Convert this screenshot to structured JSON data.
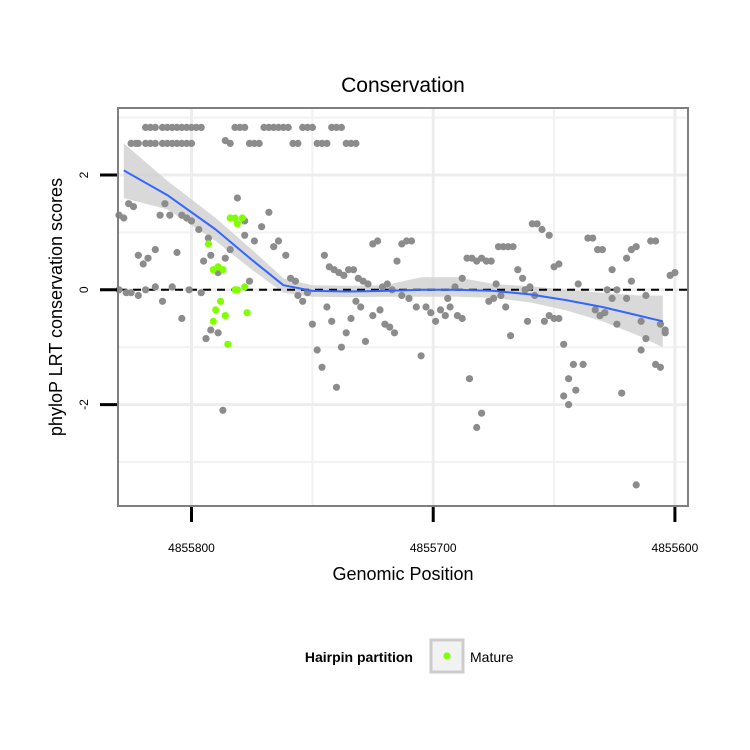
{
  "chart_data": {
    "type": "scatter",
    "title": "Conservation",
    "xlabel": "Genomic Position",
    "ylabel": "phyloP LRT conservation scores",
    "x_reversed": true,
    "xlim": [
      4855830,
      4855595
    ],
    "ylim": [
      -3.75,
      3.15
    ],
    "x_ticks": [
      4855800,
      4855700,
      4855600
    ],
    "x_tick_labels": [
      "4855800",
      "4855700",
      "4855600"
    ],
    "y_ticks": [
      2,
      0,
      -2
    ],
    "y_tick_labels": [
      "2",
      "0",
      "-2"
    ],
    "x_minor_grid": [
      4855750,
      4855650
    ],
    "y_minor_grid": [
      3,
      1,
      -1,
      -3
    ],
    "reference_line": {
      "y": 0,
      "style": "dashed"
    },
    "legend": {
      "title": "Hairpin partition",
      "entries": [
        "Mature"
      ],
      "position": "bottom"
    },
    "colors": {
      "default_points": "#8c8c8c",
      "mature_points": "#7fff00",
      "smooth_line": "#3366ff",
      "ribbon": "#cccccc",
      "panel_border": "#7f7f7f"
    },
    "series": [
      {
        "name": "other",
        "points": [
          [
            4855825,
            2.55
          ],
          [
            4855823,
            2.55
          ],
          [
            4855822,
            2.55
          ],
          [
            4855819,
            2.55
          ],
          [
            4855817,
            2.55
          ],
          [
            4855815,
            2.55
          ],
          [
            4855812,
            2.55
          ],
          [
            4855810,
            2.55
          ],
          [
            4855808,
            2.55
          ],
          [
            4855806,
            2.55
          ],
          [
            4855804,
            2.55
          ],
          [
            4855802,
            2.55
          ],
          [
            4855800,
            2.55
          ],
          [
            4855819,
            2.83
          ],
          [
            4855817,
            2.83
          ],
          [
            4855815,
            2.83
          ],
          [
            4855812,
            2.83
          ],
          [
            4855810,
            2.83
          ],
          [
            4855808,
            2.83
          ],
          [
            4855806,
            2.83
          ],
          [
            4855804,
            2.83
          ],
          [
            4855802,
            2.83
          ],
          [
            4855800,
            2.83
          ],
          [
            4855798,
            2.83
          ],
          [
            4855796,
            2.83
          ],
          [
            4855786,
            2.6
          ],
          [
            4855784,
            2.55
          ],
          [
            4855782,
            2.83
          ],
          [
            4855780,
            2.83
          ],
          [
            4855778,
            2.83
          ],
          [
            4855776,
            2.55
          ],
          [
            4855774,
            2.55
          ],
          [
            4855772,
            2.55
          ],
          [
            4855770,
            2.83
          ],
          [
            4855768,
            2.83
          ],
          [
            4855766,
            2.83
          ],
          [
            4855764,
            2.83
          ],
          [
            4855762,
            2.83
          ],
          [
            4855760,
            2.83
          ],
          [
            4855758,
            2.55
          ],
          [
            4855756,
            2.55
          ],
          [
            4855754,
            2.83
          ],
          [
            4855752,
            2.83
          ],
          [
            4855750,
            2.83
          ],
          [
            4855748,
            2.55
          ],
          [
            4855746,
            2.55
          ],
          [
            4855744,
            2.55
          ],
          [
            4855742,
            2.83
          ],
          [
            4855740,
            2.83
          ],
          [
            4855738,
            2.83
          ],
          [
            4855736,
            2.55
          ],
          [
            4855734,
            2.55
          ],
          [
            4855732,
            2.55
          ],
          [
            4855830,
            1.3
          ],
          [
            4855828,
            1.25
          ],
          [
            4855826,
            1.5
          ],
          [
            4855824,
            1.45
          ],
          [
            4855822,
            0.6
          ],
          [
            4855820,
            0.45
          ],
          [
            4855818,
            0.55
          ],
          [
            4855815,
            0.7
          ],
          [
            4855813,
            1.3
          ],
          [
            4855811,
            1.5
          ],
          [
            4855809,
            1.3
          ],
          [
            4855806,
            0.65
          ],
          [
            4855804,
            1.3
          ],
          [
            4855802,
            1.25
          ],
          [
            4855800,
            1.2
          ],
          [
            4855797,
            1.05
          ],
          [
            4855795,
            0.5
          ],
          [
            4855793,
            0.9
          ],
          [
            4855792,
            0.6
          ],
          [
            4855789,
            0.3
          ],
          [
            4855786,
            0.55
          ],
          [
            4855784,
            0.7
          ],
          [
            4855781,
            1.6
          ],
          [
            4855778,
            1.2
          ],
          [
            4855776,
            0.15
          ],
          [
            4855830,
            0.0
          ],
          [
            4855827,
            -0.05
          ],
          [
            4855825,
            -0.05
          ],
          [
            4855822,
            -0.1
          ],
          [
            4855819,
            0.0
          ],
          [
            4855815,
            0.05
          ],
          [
            4855812,
            -0.2
          ],
          [
            4855808,
            0.05
          ],
          [
            4855804,
            -0.5
          ],
          [
            4855801,
            0.0
          ],
          [
            4855796,
            -0.05
          ],
          [
            4855794,
            -0.85
          ],
          [
            4855792,
            -0.7
          ],
          [
            4855789,
            -0.75
          ],
          [
            4855787,
            -2.1
          ],
          [
            4855778,
            0.95
          ],
          [
            4855774,
            0.85
          ],
          [
            4855771,
            1.1
          ],
          [
            4855768,
            1.35
          ],
          [
            4855766,
            0.75
          ],
          [
            4855764,
            0.85
          ],
          [
            4855761,
            0.6
          ],
          [
            4855759,
            0.2
          ],
          [
            4855757,
            0.15
          ],
          [
            4855756,
            -0.1
          ],
          [
            4855754,
            -0.2
          ],
          [
            4855752,
            -0.05
          ],
          [
            4855750,
            -0.6
          ],
          [
            4855748,
            -1.05
          ],
          [
            4855746,
            -1.35
          ],
          [
            4855744,
            -0.3
          ],
          [
            4855742,
            -0.55
          ],
          [
            4855740,
            -1.7
          ],
          [
            4855738,
            -1.0
          ],
          [
            4855736,
            -0.75
          ],
          [
            4855734,
            -0.5
          ],
          [
            4855732,
            -0.2
          ],
          [
            4855730,
            -0.3
          ],
          [
            4855728,
            -0.9
          ],
          [
            4855745,
            0.6
          ],
          [
            4855743,
            0.4
          ],
          [
            4855741,
            0.35
          ],
          [
            4855739,
            0.3
          ],
          [
            4855737,
            0.25
          ],
          [
            4855735,
            0.35
          ],
          [
            4855733,
            0.35
          ],
          [
            4855731,
            0.2
          ],
          [
            4855729,
            0.15
          ],
          [
            4855727,
            0.1
          ],
          [
            4855725,
            0.8
          ],
          [
            4855723,
            0.85
          ],
          [
            4855721,
            0.05
          ],
          [
            4855719,
            0.1
          ],
          [
            4855717,
            0.0
          ],
          [
            4855715,
            0.5
          ],
          [
            4855713,
            0.8
          ],
          [
            4855711,
            0.85
          ],
          [
            4855709,
            0.85
          ],
          [
            4855725,
            -0.45
          ],
          [
            4855722,
            -0.35
          ],
          [
            4855720,
            -0.6
          ],
          [
            4855718,
            -0.65
          ],
          [
            4855716,
            -0.75
          ],
          [
            4855713,
            -0.1
          ],
          [
            4855710,
            -0.15
          ],
          [
            4855707,
            -0.3
          ],
          [
            4855705,
            -1.15
          ],
          [
            4855703,
            -0.3
          ],
          [
            4855701,
            -0.4
          ],
          [
            4855699,
            -0.55
          ],
          [
            4855697,
            -0.35
          ],
          [
            4855695,
            -0.45
          ],
          [
            4855693,
            -0.3
          ],
          [
            4855690,
            -0.45
          ],
          [
            4855688,
            -0.5
          ],
          [
            4855686,
            0.55
          ],
          [
            4855684,
            0.55
          ],
          [
            4855682,
            0.5
          ],
          [
            4855680,
            0.55
          ],
          [
            4855678,
            0.5
          ],
          [
            4855676,
            0.5
          ],
          [
            4855674,
            0.1
          ],
          [
            4855672,
            -0.1
          ],
          [
            4855670,
            -0.3
          ],
          [
            4855668,
            -0.8
          ],
          [
            4855694,
            -0.15
          ],
          [
            4855691,
            0.05
          ],
          [
            4855688,
            0.2
          ],
          [
            4855685,
            -1.55
          ],
          [
            4855682,
            -2.4
          ],
          [
            4855680,
            -2.15
          ],
          [
            4855677,
            -0.2
          ],
          [
            4855675,
            -0.15
          ],
          [
            4855673,
            0.75
          ],
          [
            4855671,
            0.75
          ],
          [
            4855669,
            0.75
          ],
          [
            4855667,
            0.75
          ],
          [
            4855665,
            0.35
          ],
          [
            4855663,
            0.2
          ],
          [
            4855661,
            -0.55
          ],
          [
            4855659,
            1.15
          ],
          [
            4855657,
            1.15
          ],
          [
            4855654,
            -0.55
          ],
          [
            4855652,
            -0.45
          ],
          [
            4855650,
            0.4
          ],
          [
            4855648,
            0.45
          ],
          [
            4855646,
            -1.85
          ],
          [
            4855644,
            -2.0
          ],
          [
            4855655,
            1.05
          ],
          [
            4855652,
            0.95
          ],
          [
            4855650,
            -0.5
          ],
          [
            4855648,
            -0.5
          ],
          [
            4855646,
            -0.95
          ],
          [
            4855644,
            -1.55
          ],
          [
            4855642,
            -1.3
          ],
          [
            4855640,
            0.1
          ],
          [
            4855638,
            -1.3
          ],
          [
            4855636,
            0.9
          ],
          [
            4855634,
            0.9
          ],
          [
            4855632,
            0.7
          ],
          [
            4855630,
            0.7
          ],
          [
            4855628,
            0.0
          ],
          [
            4855626,
            -0.15
          ],
          [
            4855624,
            -0.6
          ],
          [
            4855622,
            -1.8
          ],
          [
            4855620,
            0.55
          ],
          [
            4855618,
            0.7
          ],
          [
            4855616,
            0.75
          ],
          [
            4855614,
            -0.55
          ],
          [
            4855612,
            -0.1
          ],
          [
            4855610,
            0.85
          ],
          [
            4855608,
            0.85
          ],
          [
            4855606,
            -0.6
          ],
          [
            4855604,
            -0.7
          ],
          [
            4855602,
            0.25
          ],
          [
            4855600,
            0.3
          ],
          [
            4855614,
            -1.05
          ],
          [
            4855612,
            -0.85
          ],
          [
            4855608,
            -1.3
          ],
          [
            4855606,
            -1.35
          ],
          [
            4855604,
            -0.75
          ],
          [
            4855616,
            -3.4
          ],
          [
            4855641,
            -1.75
          ],
          [
            4855662,
            0.0
          ],
          [
            4855660,
            0.05
          ],
          [
            4855658,
            -0.1
          ],
          [
            4855633,
            -0.35
          ],
          [
            4855631,
            -0.45
          ],
          [
            4855629,
            -0.4
          ],
          [
            4855626,
            0.35
          ],
          [
            4855624,
            0.0
          ],
          [
            4855620,
            -0.15
          ],
          [
            4855618,
            0.15
          ]
        ]
      },
      {
        "name": "Mature",
        "points": [
          [
            4855793,
            0.8
          ],
          [
            4855791,
            0.35
          ],
          [
            4855789,
            0.4
          ],
          [
            4855787,
            0.35
          ],
          [
            4855784,
            1.25
          ],
          [
            4855782,
            1.25
          ],
          [
            4855781,
            1.15
          ],
          [
            4855779,
            1.25
          ],
          [
            4855782,
            0.0
          ],
          [
            4855790,
            -0.35
          ],
          [
            4855791,
            -0.55
          ],
          [
            4855788,
            -0.2
          ],
          [
            4855786,
            -0.45
          ],
          [
            4855785,
            -0.95
          ],
          [
            4855781,
            0.0
          ],
          [
            4855778,
            0.05
          ],
          [
            4855777,
            -0.4
          ]
        ]
      }
    ],
    "smooth_fit": {
      "x": [
        4855828,
        4855810,
        4855790,
        4855775,
        4855762,
        4855750,
        4855735,
        4855720,
        4855705,
        4855690,
        4855675,
        4855660,
        4855645,
        4855630,
        4855615,
        4855605
      ],
      "y": [
        2.08,
        1.65,
        1.05,
        0.52,
        0.08,
        -0.02,
        -0.03,
        -0.02,
        0.0,
        0.0,
        -0.02,
        -0.08,
        -0.18,
        -0.3,
        -0.45,
        -0.55
      ],
      "lower": [
        1.6,
        1.4,
        0.85,
        0.35,
        -0.05,
        -0.12,
        -0.13,
        -0.12,
        -0.12,
        -0.12,
        -0.14,
        -0.22,
        -0.36,
        -0.55,
        -0.8,
        -1.0
      ],
      "upper": [
        2.55,
        1.9,
        1.25,
        0.7,
        0.2,
        0.08,
        0.07,
        0.08,
        0.22,
        0.22,
        0.1,
        0.06,
        0.0,
        -0.05,
        -0.1,
        -0.1
      ]
    }
  }
}
